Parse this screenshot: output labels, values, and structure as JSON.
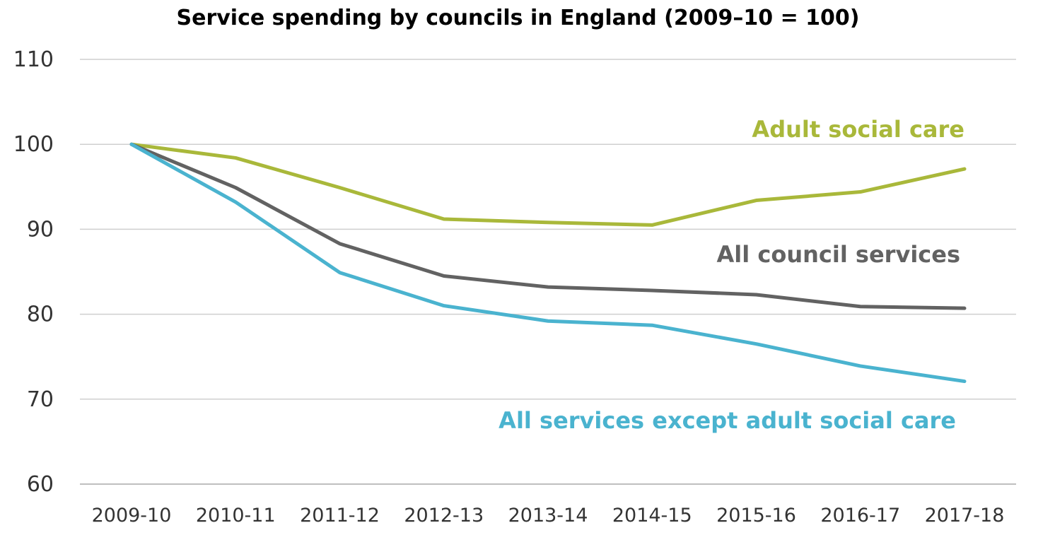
{
  "chart_data": {
    "type": "line",
    "title": "Service spending by councils in England (2009–10 = 100)",
    "xlabel": "",
    "ylabel": "",
    "categories": [
      "2009-10",
      "2010-11",
      "2011-12",
      "2012-13",
      "2013-14",
      "2014-15",
      "2015-16",
      "2016-17",
      "2017-18"
    ],
    "ylim": [
      60,
      110
    ],
    "yticks": [
      "60",
      "70",
      "80",
      "90",
      "100",
      "110"
    ],
    "grid": true,
    "series": [
      {
        "name": "Adult social care",
        "color": "#a9b83a",
        "values": [
          100,
          98.4,
          94.9,
          91.2,
          90.8,
          90.5,
          93.4,
          94.4,
          97.1
        ]
      },
      {
        "name": "All council services",
        "color": "#626262",
        "values": [
          100,
          94.9,
          88.3,
          84.5,
          83.2,
          82.8,
          82.3,
          80.9,
          80.7
        ]
      },
      {
        "name": "All services except adult social care",
        "color": "#4ab3cf",
        "values": [
          100,
          93.2,
          84.9,
          81.0,
          79.2,
          78.7,
          76.5,
          73.9,
          72.1
        ]
      }
    ]
  }
}
